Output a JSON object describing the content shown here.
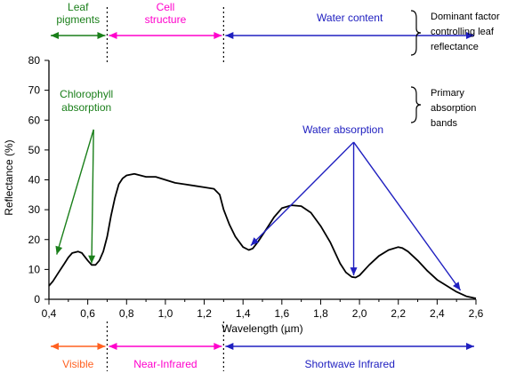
{
  "chart_data": {
    "type": "line",
    "title": "",
    "xlabel": "Wavelength (µm)",
    "ylabel": "Reflectance (%)",
    "xlim": [
      0.4,
      2.6
    ],
    "ylim": [
      0,
      80
    ],
    "x_ticks": [
      "0,4",
      "0,6",
      "0,8",
      "1,0",
      "1,2",
      "1,4",
      "1,6",
      "1,8",
      "2,0",
      "2,2",
      "2,4",
      "2,6"
    ],
    "y_ticks": [
      "0",
      "10",
      "20",
      "30",
      "40",
      "50",
      "60",
      "70",
      "80"
    ],
    "grid": false,
    "series": [
      {
        "x": [
          0.4,
          0.42,
          0.45,
          0.48,
          0.5,
          0.52,
          0.55,
          0.57,
          0.6,
          0.62,
          0.64,
          0.66,
          0.68,
          0.7,
          0.72,
          0.74,
          0.76,
          0.78,
          0.8,
          0.84,
          0.9,
          0.95,
          1.0,
          1.05,
          1.1,
          1.15,
          1.2,
          1.25,
          1.28,
          1.3,
          1.33,
          1.36,
          1.4,
          1.43,
          1.45,
          1.48,
          1.52,
          1.56,
          1.6,
          1.65,
          1.7,
          1.75,
          1.8,
          1.85,
          1.9,
          1.93,
          1.96,
          1.98,
          2.0,
          2.05,
          2.1,
          2.15,
          2.2,
          2.22,
          2.25,
          2.3,
          2.35,
          2.4,
          2.45,
          2.5,
          2.55,
          2.6
        ],
        "y": [
          4.5,
          6,
          9,
          12,
          14,
          15.5,
          16,
          15.5,
          13,
          11.5,
          11.5,
          13,
          16,
          21,
          28,
          34,
          38.5,
          40.5,
          41.5,
          42,
          41,
          41,
          40,
          39,
          38.5,
          38,
          37.5,
          37,
          35,
          30,
          25,
          21,
          17.5,
          16.5,
          17,
          19.5,
          23.5,
          27.5,
          30.5,
          31.5,
          31.2,
          29,
          24.5,
          19,
          12,
          9,
          7.5,
          7.3,
          8,
          11.5,
          14.5,
          16.5,
          17.5,
          17.2,
          16,
          13,
          9.5,
          6.5,
          4.5,
          2.5,
          1,
          0.3
        ]
      }
    ],
    "color": "#000000",
    "dividers_x": [
      0.7,
      1.3
    ],
    "top_regions": [
      {
        "label": "Leaf pigments",
        "x_start": 0.4,
        "x_end": 0.7,
        "color": "#1a7f1a"
      },
      {
        "label": "Cell structure",
        "x_start": 0.7,
        "x_end": 1.3,
        "color": "#ff00cc"
      },
      {
        "label": "Water content",
        "x_start": 1.3,
        "x_end": 2.6,
        "color": "#2020c0"
      }
    ],
    "bottom_regions": [
      {
        "label": "Visible",
        "x_start": 0.4,
        "x_end": 0.7,
        "color": "#ff6020"
      },
      {
        "label": "Near-Infrared",
        "x_start": 0.7,
        "x_end": 1.3,
        "color": "#ff00cc"
      },
      {
        "label": "Shortwave Infrared",
        "x_start": 1.3,
        "x_end": 2.6,
        "color": "#2020c0"
      }
    ],
    "annotations": [
      {
        "label": "Chlorophyll absorption",
        "color": "#1a7f1a",
        "anchor": [
          0.63,
          61
        ],
        "targets": [
          [
            0.44,
            15
          ],
          [
            0.62,
            12
          ]
        ]
      },
      {
        "label": "Water absorption",
        "color": "#2020c0",
        "anchor": [
          1.97,
          55
        ],
        "targets": [
          [
            1.44,
            18
          ],
          [
            1.97,
            8
          ],
          [
            2.52,
            3
          ]
        ]
      }
    ],
    "side_labels": [
      {
        "label": "Dominant factor controlling leaf reflectance",
        "row": "top"
      },
      {
        "label": "Primary absorption bands",
        "row": "upper-right"
      }
    ]
  }
}
